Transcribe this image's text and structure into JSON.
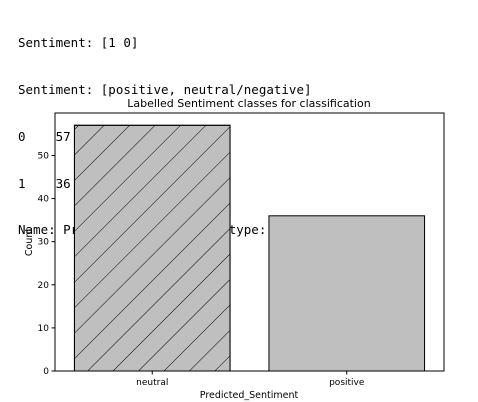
{
  "output_lines": [
    "Sentiment: [1 0]",
    "Sentiment: [positive, neutral/negative]",
    "0    57",
    "1    36",
    "Name: Predicted_Sentiment, dtype: int64"
  ],
  "chart_data": {
    "type": "bar",
    "title": "Labelled Sentiment classes for classification",
    "xlabel": "Predicted_Sentiment",
    "ylabel": "Count",
    "categories": [
      "neutral",
      "positive"
    ],
    "values": [
      57,
      36
    ],
    "ylim": [
      0,
      59.85
    ],
    "yticks": [
      0,
      10,
      20,
      30,
      40,
      50
    ],
    "bar_color": "#bfbfbf",
    "edge_color": "#000000",
    "hatched": [
      true,
      false
    ]
  }
}
